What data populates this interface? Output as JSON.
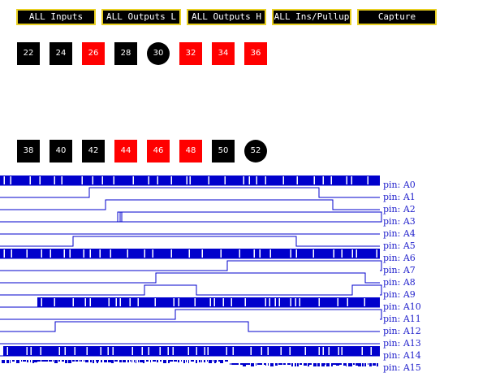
{
  "toolbar": {
    "buttons": [
      {
        "label": "ALL Inputs"
      },
      {
        "label": "ALL Outputs L"
      },
      {
        "label": "ALL Outputs H"
      },
      {
        "label": "ALL Ins/Pullup"
      },
      {
        "label": "Capture"
      }
    ]
  },
  "colors": {
    "low": "#000000",
    "high": "#ff0000",
    "button_border": "#e8cf20",
    "trace": "#0000cc",
    "label": "#2222cc"
  },
  "pins_row1": [
    {
      "label": "22",
      "state": "low",
      "shape": "square"
    },
    {
      "label": "24",
      "state": "low",
      "shape": "square"
    },
    {
      "label": "26",
      "state": "high",
      "shape": "square"
    },
    {
      "label": "28",
      "state": "low",
      "shape": "square"
    },
    {
      "label": "30",
      "state": "low",
      "shape": "circle"
    },
    {
      "label": "32",
      "state": "high",
      "shape": "square"
    },
    {
      "label": "34",
      "state": "high",
      "shape": "square"
    },
    {
      "label": "36",
      "state": "high",
      "shape": "square"
    }
  ],
  "pins_row2": [
    {
      "label": "38",
      "state": "low",
      "shape": "square"
    },
    {
      "label": "40",
      "state": "low",
      "shape": "square"
    },
    {
      "label": "42",
      "state": "low",
      "shape": "square"
    },
    {
      "label": "44",
      "state": "high",
      "shape": "square"
    },
    {
      "label": "46",
      "state": "high",
      "shape": "square"
    },
    {
      "label": "48",
      "state": "high",
      "shape": "square"
    },
    {
      "label": "50",
      "state": "low",
      "shape": "square"
    },
    {
      "label": "52",
      "state": "low",
      "shape": "circle"
    }
  ],
  "traces": [
    {
      "label": "pin: A0",
      "style": "dense"
    },
    {
      "label": "pin: A1",
      "style": "pulse"
    },
    {
      "label": "pin: A2",
      "style": "pulse"
    },
    {
      "label": "pin: A3",
      "style": "pulse"
    },
    {
      "label": "pin: A4",
      "style": "flat"
    },
    {
      "label": "pin: A5",
      "style": "pulse"
    },
    {
      "label": "pin: A6",
      "style": "dense"
    },
    {
      "label": "pin: A7",
      "style": "pulse"
    },
    {
      "label": "pin: A8",
      "style": "pulse"
    },
    {
      "label": "pin: A9",
      "style": "pulse"
    },
    {
      "label": "pin: A10",
      "style": "dense"
    },
    {
      "label": "pin: A11",
      "style": "pulse"
    },
    {
      "label": "pin: A12",
      "style": "pulse"
    },
    {
      "label": "pin: A13",
      "style": "flat"
    },
    {
      "label": "pin: A14",
      "style": "dense"
    },
    {
      "label": "pin: A15",
      "style": "noise"
    }
  ]
}
